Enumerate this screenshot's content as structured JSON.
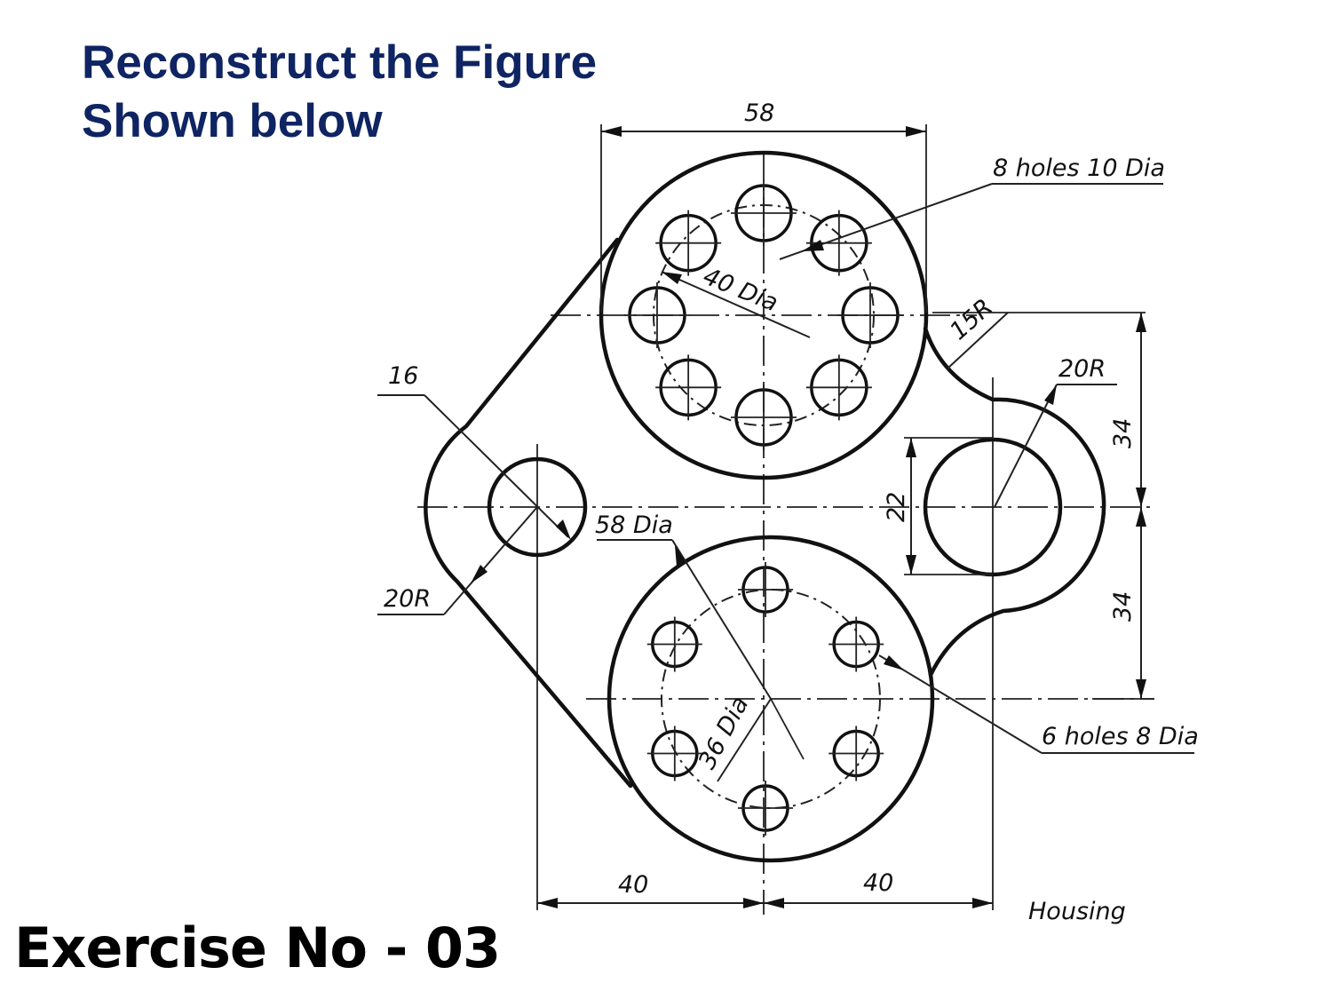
{
  "title": {
    "line1": "Reconstruct the Figure",
    "line2": "Shown below"
  },
  "exercise_label": "Exercise No - 03",
  "drawing": {
    "dimensions": {
      "top_width": "58",
      "holes_top": "8 holes 10 Dia",
      "pcd_top": "40 Dia",
      "fillet_radius": "15R",
      "right_radius": "20R",
      "right_upper_height": "34",
      "right_lower_height": "34",
      "left_hole_width": "16",
      "left_radius": "20R",
      "bottom_boss_dia": "58 Dia",
      "right_hole_height": "22",
      "holes_bottom": "6 holes 8 Dia",
      "pcd_bottom": "36 Dia",
      "bottom_left_width": "40",
      "bottom_right_width": "40"
    },
    "caption": "Housing"
  },
  "colors": {
    "title": "#0f2462",
    "line": "#111111",
    "background": "#ffffff"
  }
}
